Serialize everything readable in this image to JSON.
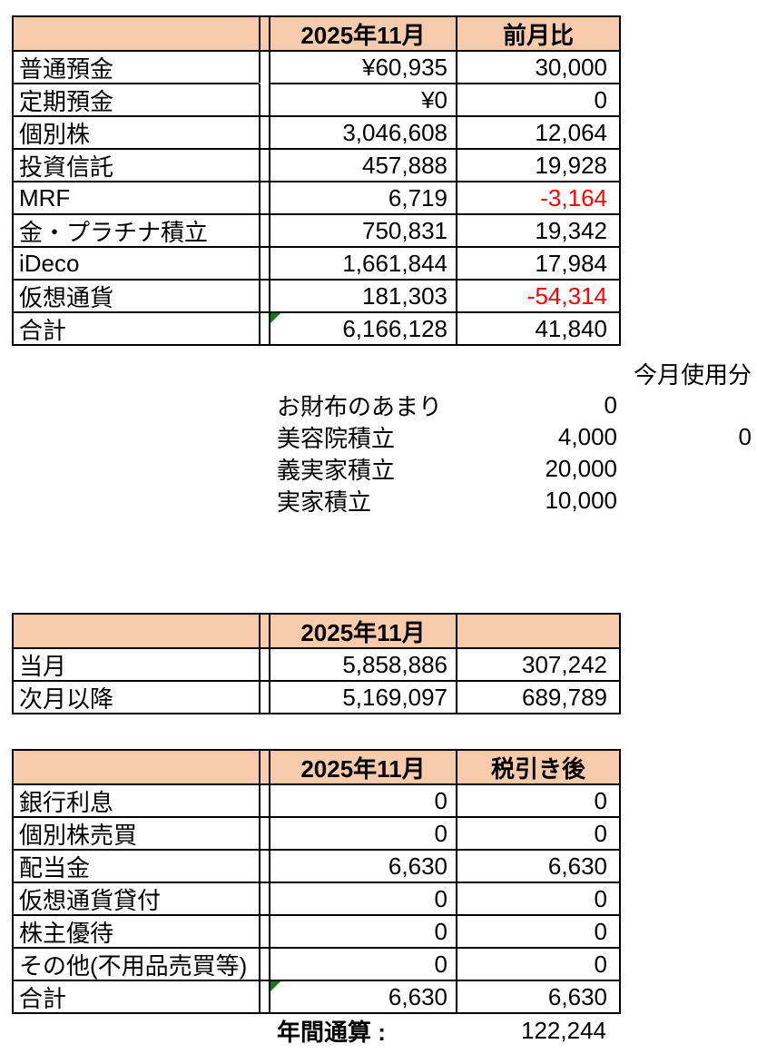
{
  "colors": {
    "header_fill": "#F8CBAD",
    "border": "#000000",
    "negative": "#FF0000",
    "triangle_green": "#147814"
  },
  "assets_table": {
    "header": {
      "label": "",
      "month": "2025年11月",
      "delta": "前月比"
    },
    "rows": [
      {
        "label": "普通預金",
        "value": "¥60,935",
        "delta": "30,000"
      },
      {
        "label": "定期預金",
        "value": "¥0",
        "delta": "0"
      },
      {
        "label": "個別株",
        "value": "3,046,608",
        "delta": "12,064"
      },
      {
        "label": "投資信託",
        "value": "457,888",
        "delta": "19,928"
      },
      {
        "label": "MRF",
        "value": "6,719",
        "delta": "-3,164"
      },
      {
        "label": "金・プラチナ積立",
        "value": "750,831",
        "delta": "19,342"
      },
      {
        "label": "iDeco",
        "value": "1,661,844",
        "delta": "17,984"
      },
      {
        "label": "仮想通貨",
        "value": "181,303",
        "delta": "-54,314"
      },
      {
        "label": "合計",
        "value": "6,166,128",
        "delta": "41,840"
      }
    ]
  },
  "savings_section": {
    "used_header": "今月使用分",
    "rows": [
      {
        "label": "お財布のあまり",
        "amount": "0",
        "used": ""
      },
      {
        "label": "美容院積立",
        "amount": "4,000",
        "used": "0"
      },
      {
        "label": "義実家積立",
        "amount": "20,000",
        "used": ""
      },
      {
        "label": "実家積立",
        "amount": "10,000",
        "used": ""
      }
    ]
  },
  "budget_table": {
    "header": {
      "label": "",
      "month": "2025年11月",
      "extra": ""
    },
    "rows": [
      {
        "label": "当月",
        "value": "5,858,886",
        "delta": "307,242"
      },
      {
        "label": "次月以降",
        "value": "5,169,097",
        "delta": "689,789"
      }
    ]
  },
  "income_table": {
    "header": {
      "label": "",
      "month": "2025年11月",
      "extra": "税引き後"
    },
    "rows": [
      {
        "label": "銀行利息",
        "value": "0",
        "delta": "0"
      },
      {
        "label": "個別株売買",
        "value": "0",
        "delta": "0"
      },
      {
        "label": "配当金",
        "value": "6,630",
        "delta": "6,630"
      },
      {
        "label": "仮想通貨貸付",
        "value": "0",
        "delta": "0"
      },
      {
        "label": "株主優待",
        "value": "0",
        "delta": "0"
      },
      {
        "label": "その他(不用品売買等)",
        "value": "0",
        "delta": "0"
      },
      {
        "label": "合計",
        "value": "6,630",
        "delta": "6,630"
      }
    ]
  },
  "annual_total": {
    "label": "年間通算 :",
    "value": "122,244"
  }
}
